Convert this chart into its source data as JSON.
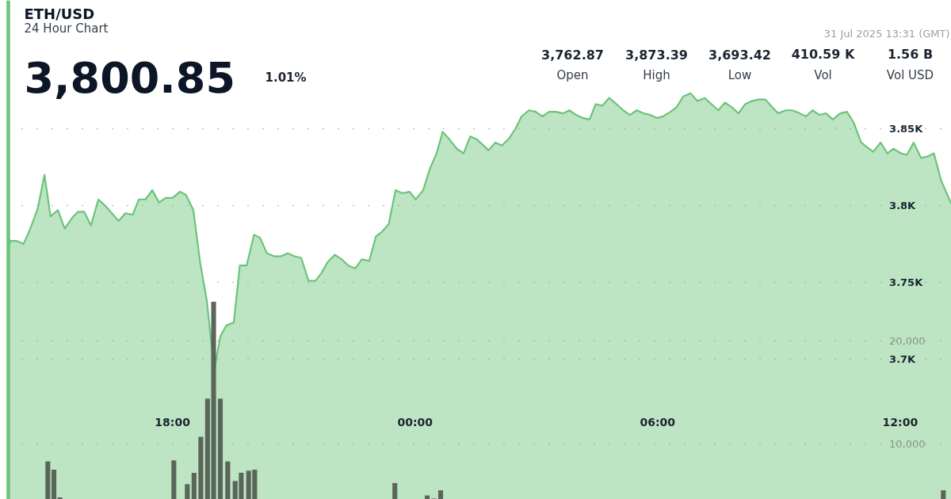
{
  "chart_data": {
    "type": "area",
    "title": "ETH/USD",
    "subtitle": "24 Hour Chart",
    "annotations": [
      "3,800.85",
      "1.01%",
      "31 Jul 2025 13:31 (GMT)",
      "3,762.87",
      "Open",
      "3,873.39",
      "High",
      "3,693.42",
      "Low",
      "410.59 K",
      "Vol",
      "1.56 B",
      "Vol USD"
    ],
    "xlim": [
      "2025-07-30T13:54",
      "2025-07-31T13:16"
    ],
    "xticks": [
      {
        "value": "2025-07-30T18:00",
        "label": "18:00"
      },
      {
        "value": "2025-07-31T00:00",
        "label": "00:00"
      },
      {
        "value": "2025-07-31T06:00",
        "label": "06:00"
      },
      {
        "value": "2025-07-31T12:00",
        "label": "12:00"
      }
    ],
    "ylim": [
      3608.8,
      3933.5
    ],
    "yticks": [
      {
        "value": 3700,
        "label": "3.7K"
      },
      {
        "value": 3750,
        "label": "3.75K"
      },
      {
        "value": 3800,
        "label": "3.8K"
      },
      {
        "value": 3850,
        "label": "3.85K"
      }
    ],
    "y2lim": [
      4615,
      53077
    ],
    "y2ticks": [
      {
        "value": 10000,
        "label": "10,000"
      },
      {
        "value": 20000,
        "label": "20,000"
      }
    ],
    "grid": "y",
    "series": [
      {
        "color": "#6cc47a",
        "x": [
          "2025-07-30T13:55",
          "2025-07-30T14:00",
          "2025-07-30T14:09",
          "2025-07-30T14:19",
          "2025-07-30T14:29",
          "2025-07-30T14:40",
          "2025-07-30T14:50",
          "2025-07-30T14:59",
          "2025-07-30T15:10",
          "2025-07-30T15:20",
          "2025-07-30T15:31",
          "2025-07-30T15:40",
          "2025-07-30T15:49",
          "2025-07-30T15:59",
          "2025-07-30T16:10",
          "2025-07-30T16:20",
          "2025-07-30T16:30",
          "2025-07-30T16:40",
          "2025-07-30T16:50",
          "2025-07-30T17:01",
          "2025-07-30T17:10",
          "2025-07-30T17:20",
          "2025-07-30T17:30",
          "2025-07-30T17:40",
          "2025-07-30T17:50",
          "2025-07-30T18:00",
          "2025-07-30T18:11",
          "2025-07-30T18:20",
          "2025-07-30T18:31",
          "2025-07-30T18:41",
          "2025-07-30T18:51",
          "2025-07-30T19:02",
          "2025-07-30T19:11",
          "2025-07-30T19:20",
          "2025-07-30T19:31",
          "2025-07-30T19:40",
          "2025-07-30T19:50",
          "2025-07-30T20:01",
          "2025-07-30T20:10",
          "2025-07-30T20:20",
          "2025-07-30T20:31",
          "2025-07-30T20:41",
          "2025-07-30T20:51",
          "2025-07-30T21:01",
          "2025-07-30T21:11",
          "2025-07-30T21:22",
          "2025-07-30T21:32",
          "2025-07-30T21:41",
          "2025-07-30T21:50",
          "2025-07-30T22:01",
          "2025-07-30T22:11",
          "2025-07-30T22:21",
          "2025-07-30T22:31",
          "2025-07-30T22:41",
          "2025-07-30T22:52",
          "2025-07-30T23:02",
          "2025-07-30T23:11",
          "2025-07-30T23:21",
          "2025-07-30T23:31",
          "2025-07-30T23:41",
          "2025-07-30T23:52",
          "2025-07-31T00:01",
          "2025-07-31T00:12",
          "2025-07-31T00:22",
          "2025-07-31T00:32",
          "2025-07-31T00:41",
          "2025-07-31T00:51",
          "2025-07-31T01:02",
          "2025-07-31T01:12",
          "2025-07-31T01:22",
          "2025-07-31T01:32",
          "2025-07-31T01:49",
          "2025-07-31T01:59",
          "2025-07-31T02:09",
          "2025-07-31T02:20",
          "2025-07-31T02:29",
          "2025-07-31T02:38",
          "2025-07-31T02:49",
          "2025-07-31T02:59",
          "2025-07-31T03:09",
          "2025-07-31T03:19",
          "2025-07-31T03:29",
          "2025-07-31T03:40",
          "2025-07-31T03:49",
          "2025-07-31T03:59",
          "2025-07-31T04:09",
          "2025-07-31T04:19",
          "2025-07-31T04:28",
          "2025-07-31T04:38",
          "2025-07-31T04:48",
          "2025-07-31T04:59",
          "2025-07-31T05:09",
          "2025-07-31T05:19",
          "2025-07-31T05:29",
          "2025-07-31T05:39",
          "2025-07-31T05:49",
          "2025-07-31T05:59",
          "2025-07-31T06:08",
          "2025-07-31T06:19",
          "2025-07-31T06:28",
          "2025-07-31T06:38",
          "2025-07-31T06:49",
          "2025-07-31T06:59",
          "2025-07-31T07:10",
          "2025-07-31T07:20",
          "2025-07-31T07:30",
          "2025-07-31T07:40",
          "2025-07-31T07:50",
          "2025-07-31T08:00",
          "2025-07-31T08:10",
          "2025-07-31T08:20",
          "2025-07-31T08:30",
          "2025-07-31T08:40",
          "2025-07-31T08:50",
          "2025-07-31T08:59",
          "2025-07-31T09:10",
          "2025-07-31T09:20",
          "2025-07-31T09:31",
          "2025-07-31T09:40",
          "2025-07-31T09:50",
          "2025-07-31T10:00",
          "2025-07-31T10:10",
          "2025-07-31T10:20",
          "2025-07-31T10:31",
          "2025-07-31T10:41",
          "2025-07-31T10:51",
          "2025-07-31T11:02",
          "2025-07-31T11:11",
          "2025-07-31T11:20",
          "2025-07-31T11:31",
          "2025-07-31T11:41",
          "2025-07-31T11:50",
          "2025-07-31T12:01",
          "2025-07-31T12:10",
          "2025-07-31T12:20",
          "2025-07-31T12:31",
          "2025-07-31T12:41",
          "2025-07-31T12:50",
          "2025-07-31T13:01",
          "2025-07-31T13:16"
        ],
        "values": [
          3773,
          3777,
          3777,
          3775,
          3785,
          3798,
          3820,
          3793,
          3797,
          3785,
          3792,
          3796,
          3796,
          3787,
          3804,
          3800,
          3795,
          3790,
          3795,
          3794,
          3804,
          3804,
          3810,
          3802,
          3805,
          3805,
          3809,
          3807,
          3797,
          3763,
          3738,
          3693,
          3715,
          3722,
          3724,
          3761,
          3761,
          3781,
          3779,
          3769,
          3767,
          3767,
          3769,
          3767,
          3766,
          3751,
          3751,
          3756,
          3763,
          3768,
          3765,
          3761,
          3759,
          3765,
          3764,
          3780,
          3783,
          3788,
          3810,
          3808,
          3809,
          3804,
          3810,
          3824,
          3834,
          3848,
          3843,
          3837,
          3834,
          3845,
          3843,
          3836,
          3841,
          3839,
          3844,
          3850,
          3858,
          3862,
          3861,
          3858,
          3861,
          3861,
          3860,
          3862,
          3859,
          3857,
          3856,
          3866,
          3865,
          3870,
          3866,
          3862,
          3859,
          3862,
          3860,
          3859,
          3857,
          3858,
          3861,
          3864,
          3871,
          3873,
          3868,
          3870,
          3866,
          3862,
          3867,
          3864,
          3860,
          3866,
          3868,
          3869,
          3869,
          3864,
          3860,
          3862,
          3862,
          3860,
          3858,
          3862,
          3859,
          3860,
          3856,
          3860,
          3861,
          3854,
          3841,
          3838,
          3835,
          3841,
          3834,
          3837,
          3834,
          3833,
          3841,
          3831,
          3832,
          3834,
          3816,
          3801
        ]
      },
      {
        "type": "bar",
        "axis": "y2",
        "color": "#5b665a",
        "x": [
          "2025-07-30T14:55",
          "2025-07-30T15:04",
          "2025-07-30T15:13",
          "2025-07-30T18:02",
          "2025-07-30T18:22",
          "2025-07-30T18:32",
          "2025-07-30T18:42",
          "2025-07-30T18:52",
          "2025-07-30T19:01",
          "2025-07-30T19:11",
          "2025-07-30T19:22",
          "2025-07-30T19:33",
          "2025-07-30T19:42",
          "2025-07-30T19:53",
          "2025-07-30T20:02",
          "2025-07-30T23:30",
          "2025-07-31T00:18",
          "2025-07-31T00:28",
          "2025-07-31T00:38",
          "2025-07-31T13:04"
        ],
        "values": [
          8300,
          7500,
          4800,
          8400,
          6100,
          7200,
          10700,
          14400,
          23800,
          14400,
          8300,
          6400,
          7200,
          7400,
          7500,
          6200,
          5000,
          4700,
          5500,
          5500
        ]
      }
    ]
  }
}
